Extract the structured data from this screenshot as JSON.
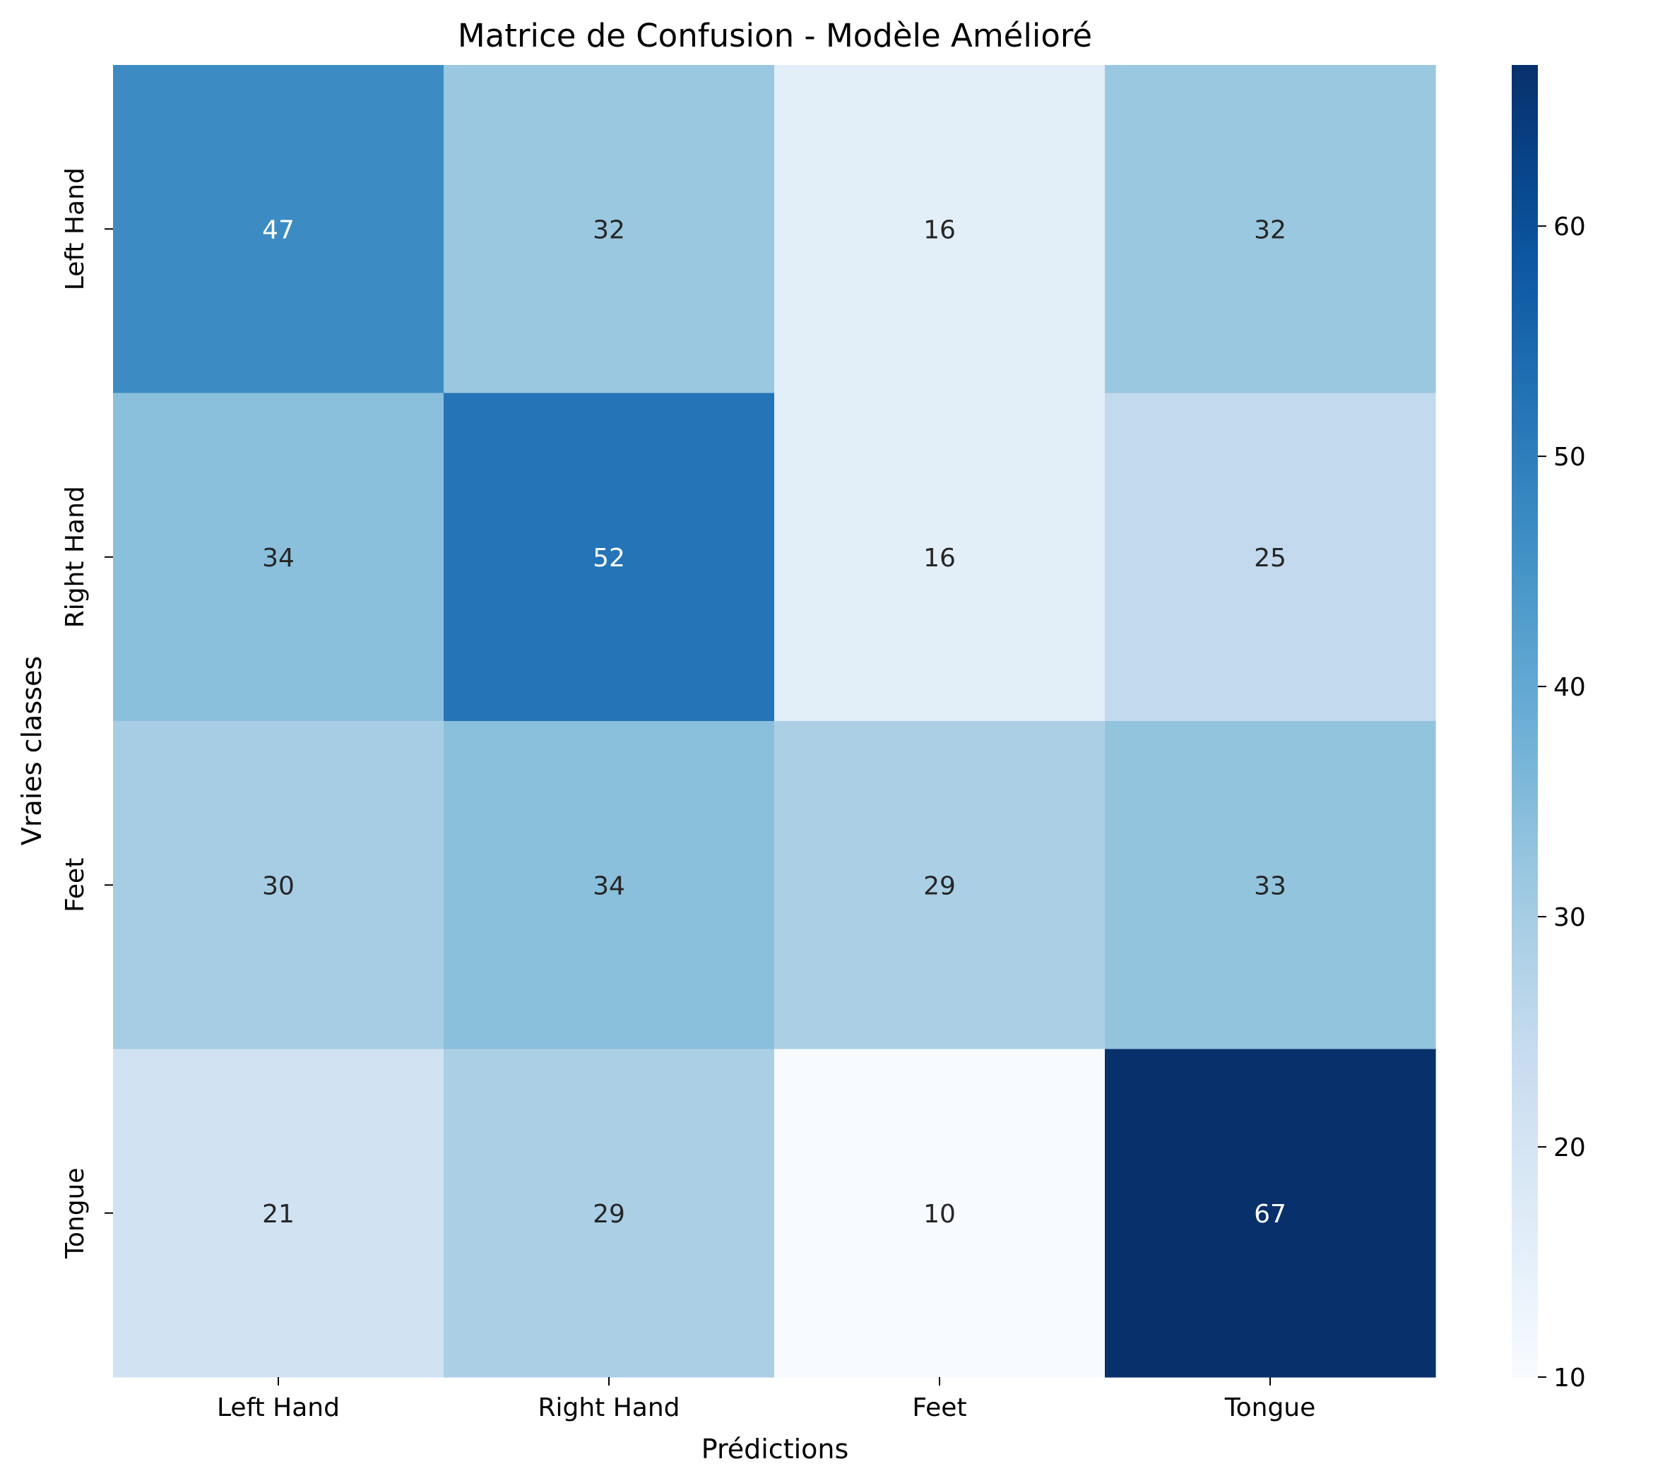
{
  "chart_data": {
    "type": "heatmap",
    "title": "Matrice de Confusion - Modèle Amélioré",
    "xlabel": "Prédictions",
    "ylabel": "Vraies classes",
    "x_categories": [
      "Left Hand",
      "Right Hand",
      "Feet",
      "Tongue"
    ],
    "y_categories": [
      "Left Hand",
      "Right Hand",
      "Feet",
      "Tongue"
    ],
    "values": [
      [
        47,
        32,
        16,
        32
      ],
      [
        34,
        52,
        16,
        25
      ],
      [
        30,
        34,
        29,
        33
      ],
      [
        21,
        29,
        10,
        67
      ]
    ],
    "colorbar": {
      "min": 10,
      "max": 67,
      "ticks": [
        10,
        20,
        30,
        40,
        50,
        60
      ],
      "colormap": "Blues"
    },
    "grid": false
  }
}
